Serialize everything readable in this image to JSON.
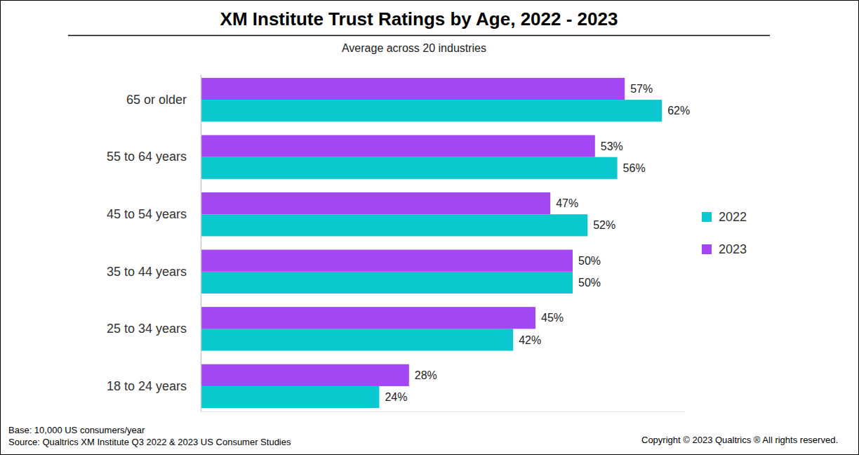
{
  "chart_data": {
    "type": "bar",
    "orientation": "horizontal",
    "title": "XM Institute Trust Ratings by Age, 2022 - 2023",
    "subtitle": "Average across 20 industries",
    "footnotes": [
      "Base: 10,000 US consumers/year",
      "Source: Qualtrics XM Institute Q3 2022 & 2023 US Consumer Studies"
    ],
    "copyright": "Copyright © 2023 Qualtrics ® All rights reserved.",
    "categories": [
      "65 or older",
      "55 to 64 years",
      "45 to 54 years",
      "35 to 44 years",
      "25 to 34 years",
      "18 to 24 years"
    ],
    "series": [
      {
        "name": "2022",
        "color": "#0ac8cd",
        "values": [
          62,
          56,
          52,
          50,
          42,
          24
        ],
        "value_labels": [
          "62%",
          "56%",
          "52%",
          "50%",
          "42%",
          "24%"
        ]
      },
      {
        "name": "2023",
        "color": "#a347f4",
        "values": [
          57,
          53,
          47,
          50,
          45,
          28
        ],
        "value_labels": [
          "57%",
          "53%",
          "47%",
          "50%",
          "45%",
          "28%"
        ]
      }
    ],
    "xlim": [
      0,
      65
    ],
    "xticks": [],
    "tick_labels": "y",
    "grid": false,
    "data_labels": true,
    "legend": "right"
  }
}
